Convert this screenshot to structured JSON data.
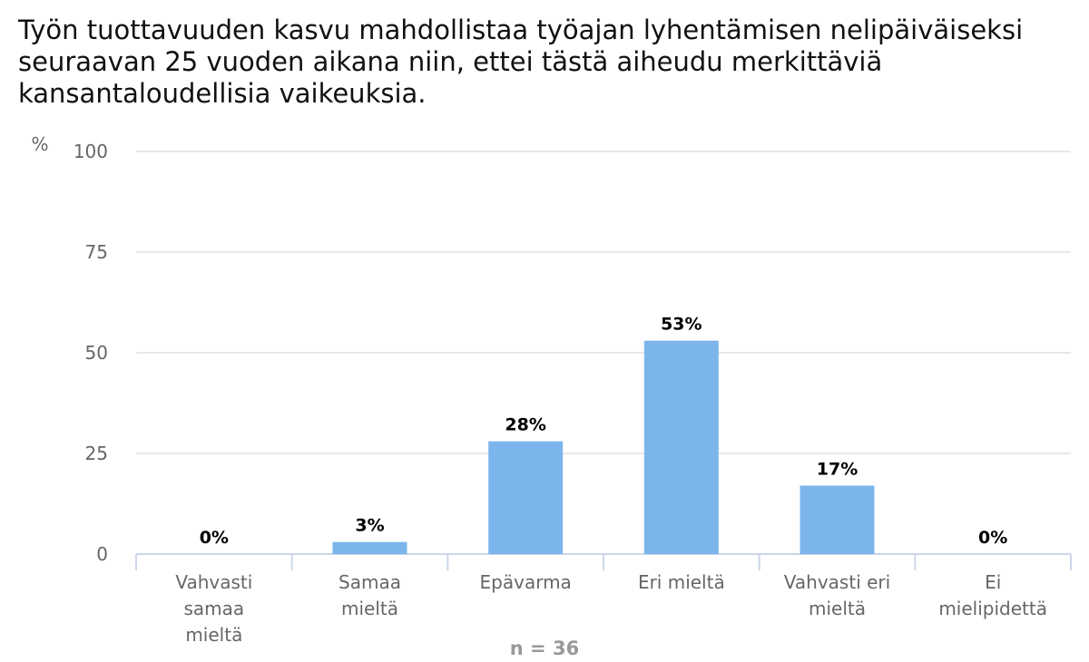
{
  "chart_data": {
    "type": "bar",
    "title": "Työn tuottavuuden kasvu mahdollistaa työajan lyhentämisen nelipäiväiseksi seuraavan 25 vuoden aikana niin, ettei tästä aiheudu merkittäviä kansantaloudellisia vaikeuksia.",
    "ylabel": "%",
    "xlabel": "",
    "ylim": [
      0,
      100
    ],
    "yticks": [
      0,
      25,
      50,
      75,
      100
    ],
    "categories": [
      [
        "Vahvasti",
        "samaa",
        "mieltä"
      ],
      [
        "Samaa",
        "mieltä"
      ],
      [
        "Epävarma"
      ],
      [
        "Eri mieltä"
      ],
      [
        "Vahvasti eri",
        "mieltä"
      ],
      [
        "Ei",
        "mielipidettä"
      ]
    ],
    "values": [
      0,
      3,
      28,
      53,
      17,
      0
    ],
    "data_labels": [
      "0%",
      "3%",
      "28%",
      "53%",
      "17%",
      "0%"
    ],
    "bar_color": "#7cb5ec",
    "grid": true,
    "legend": "none"
  },
  "footer": {
    "note": "n = 36"
  }
}
